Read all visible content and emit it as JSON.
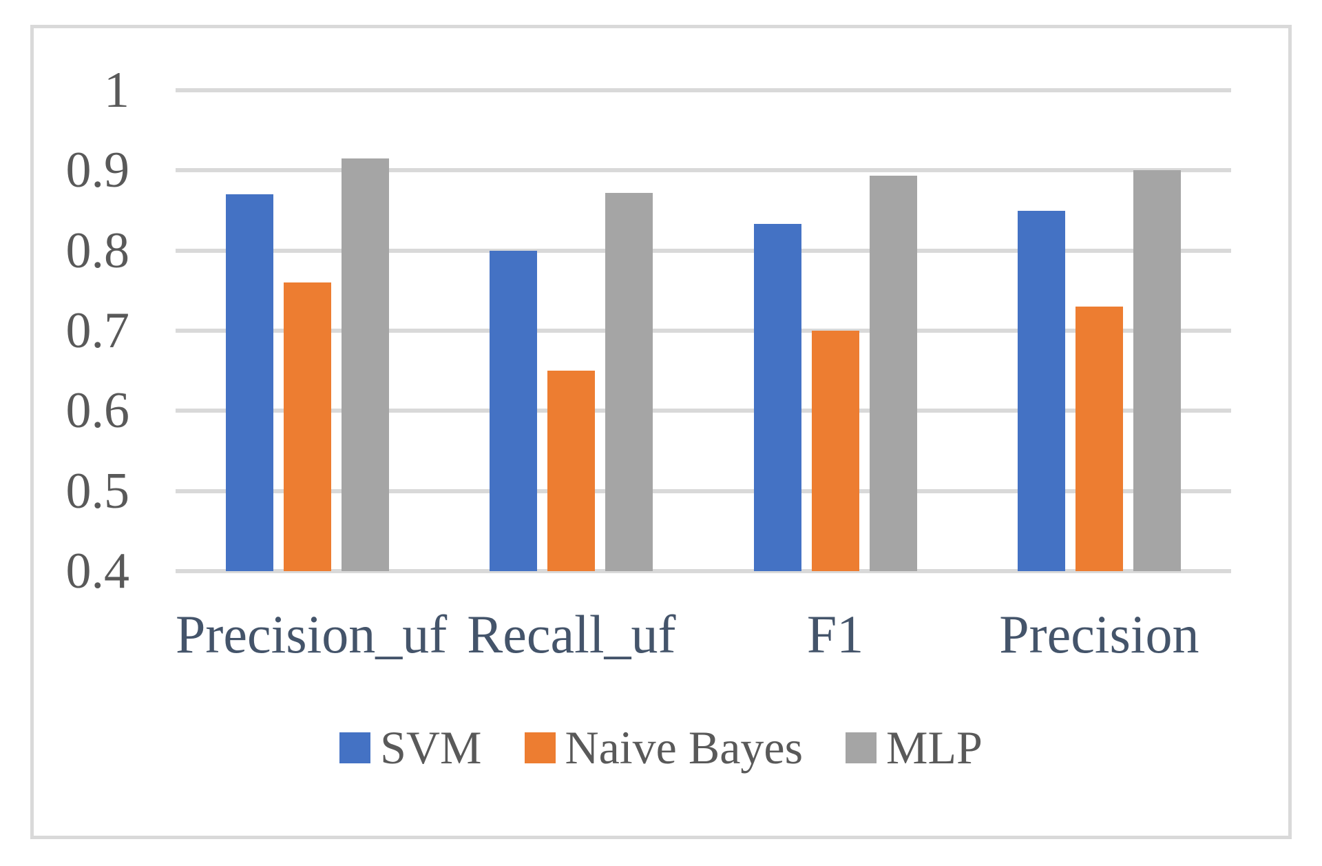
{
  "chart_data": {
    "type": "bar",
    "title": "",
    "xlabel": "",
    "ylabel": "",
    "categories": [
      "Precision_uf",
      "Recall_uf",
      "F1",
      "Precision"
    ],
    "series": [
      {
        "name": "SVM",
        "color": "#4472C4",
        "values": [
          0.87,
          0.8,
          0.833,
          0.85
        ]
      },
      {
        "name": "Naive Bayes",
        "color": "#ED7D31",
        "values": [
          0.76,
          0.65,
          0.7,
          0.73
        ]
      },
      {
        "name": "MLP",
        "color": "#A5A5A5",
        "values": [
          0.915,
          0.872,
          0.893,
          0.9
        ]
      }
    ],
    "ylim": [
      0.4,
      1.0
    ],
    "ytick_values": [
      1,
      0.9,
      0.8,
      0.7,
      0.6,
      0.5,
      0.4
    ],
    "ytick_labels": [
      "1",
      "0.9",
      "0.8",
      "0.7",
      "0.6",
      "0.5",
      "0.4"
    ],
    "grid": "horizontal",
    "legend_position": "bottom",
    "colors": {
      "gridline": "#d9d9d9",
      "frame_border": "#d9d9d9",
      "axis_tick_text": "#595959",
      "category_label_text": "#44546A",
      "legend_text": "#595959",
      "background": "#ffffff"
    }
  }
}
